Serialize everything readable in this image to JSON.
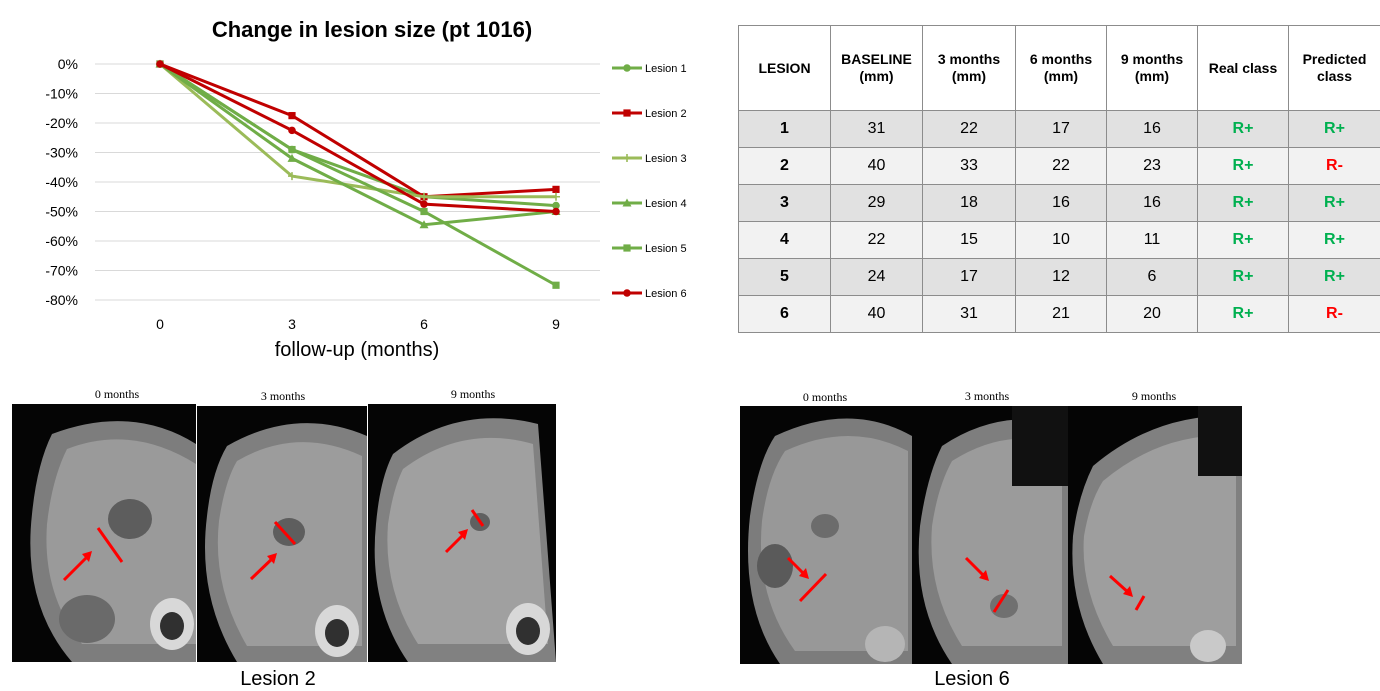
{
  "chart_data": {
    "type": "line",
    "title": "Change in lesion size (pt 1016)",
    "xlabel": "follow-up (months)",
    "ylabel": "",
    "categories": [
      "0",
      "3",
      "6",
      "9"
    ],
    "yticks": [
      "0%",
      "-10%",
      "-20%",
      "-30%",
      "-40%",
      "-50%",
      "-60%",
      "-70%",
      "-80%"
    ],
    "ylim": [
      -80,
      0
    ],
    "grid": true,
    "legend_position": "right",
    "series": [
      {
        "name": "Lesion 1",
        "values": [
          0,
          -29,
          -45,
          -48
        ],
        "color": "#70ad47",
        "marker": "circle"
      },
      {
        "name": "Lesion 2",
        "values": [
          0,
          -17.5,
          -45,
          -42.5
        ],
        "color": "#c00000",
        "marker": "square"
      },
      {
        "name": "Lesion 3",
        "values": [
          0,
          -38,
          -45,
          -45
        ],
        "color": "#9bbb59",
        "marker": "plus"
      },
      {
        "name": "Lesion 4",
        "values": [
          0,
          -32,
          -54.5,
          -50
        ],
        "color": "#70ad47",
        "marker": "triangle"
      },
      {
        "name": "Lesion 5",
        "values": [
          0,
          -29,
          -50,
          -75
        ],
        "color": "#70ad47",
        "marker": "square"
      },
      {
        "name": "Lesion 6",
        "values": [
          0,
          -22.5,
          -47.5,
          -50
        ],
        "color": "#c00000",
        "marker": "circle"
      }
    ]
  },
  "table": {
    "headers": [
      "LESION",
      "BASELINE (mm)",
      "3 months (mm)",
      "6 months (mm)",
      "9 months (mm)",
      "Real class",
      "Predicted class"
    ],
    "rows": [
      [
        "1",
        "31",
        "22",
        "17",
        "16",
        "R+",
        "R+"
      ],
      [
        "2",
        "40",
        "33",
        "22",
        "23",
        "R+",
        "R-"
      ],
      [
        "3",
        "29",
        "18",
        "16",
        "16",
        "R+",
        "R+"
      ],
      [
        "4",
        "22",
        "15",
        "10",
        "11",
        "R+",
        "R+"
      ],
      [
        "5",
        "24",
        "17",
        "12",
        "6",
        "R+",
        "R+"
      ],
      [
        "6",
        "40",
        "31",
        "21",
        "20",
        "R+",
        "R-"
      ]
    ],
    "class_colors": {
      "R+": "#00b050",
      "R-": "#ff0000"
    }
  },
  "images": {
    "lesion2": {
      "caption": "Lesion 2",
      "panels": [
        "0 months",
        "3 months",
        "9 months"
      ]
    },
    "lesion6": {
      "caption": "Lesion 6",
      "panels": [
        "0 months",
        "3 months",
        "9 months"
      ]
    }
  }
}
